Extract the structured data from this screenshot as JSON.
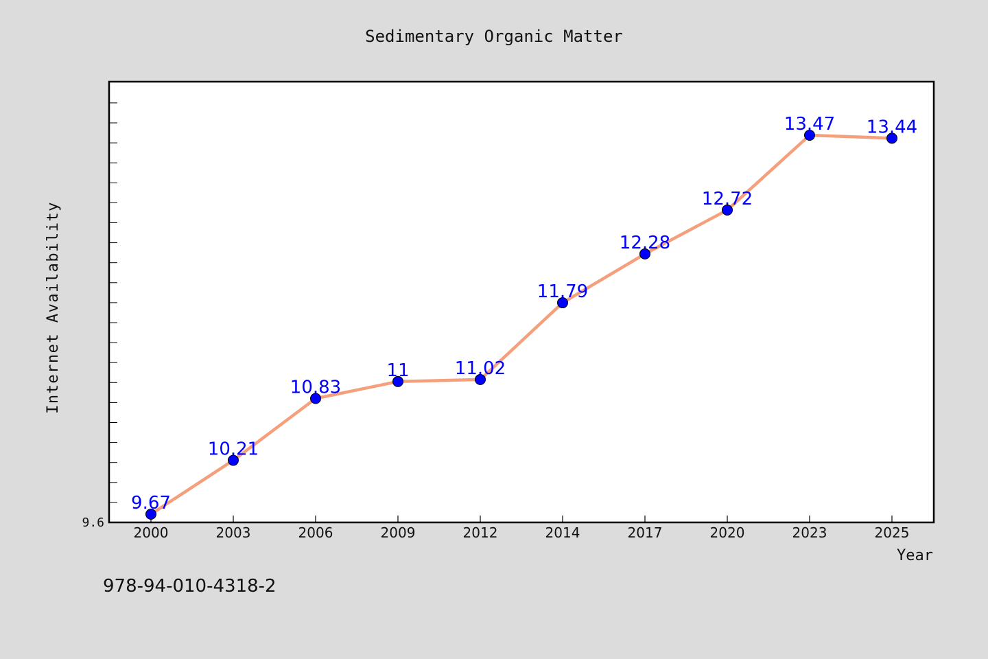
{
  "chart_data": {
    "type": "line",
    "title": "Sedimentary Organic Matter",
    "xlabel": "Year",
    "ylabel": "Internet Availability",
    "categories": [
      "2000",
      "2003",
      "2006",
      "2009",
      "2012",
      "2014",
      "2017",
      "2020",
      "2023",
      "2025"
    ],
    "series": [
      {
        "values": [
          9.67,
          10.21,
          10.83,
          11,
          11.02,
          11.79,
          12.28,
          12.72,
          13.47,
          13.44
        ]
      }
    ],
    "data_labels": [
      "9.67",
      "10.21",
      "10.83",
      "11",
      "11.02",
      "11.79",
      "12.28",
      "12.72",
      "13.47",
      "13.44"
    ],
    "y_tick_labels": [
      "9.6"
    ],
    "ylim": [
      9.6,
      14.0
    ],
    "grid": false,
    "colors": {
      "line": "#f4a07c",
      "marker": "#0000ff",
      "data_label": "#0000ff",
      "background": "#dcdcdc",
      "plot_background": "#ffffff"
    }
  },
  "footer": {
    "isbn": "978-94-010-4318-2"
  }
}
